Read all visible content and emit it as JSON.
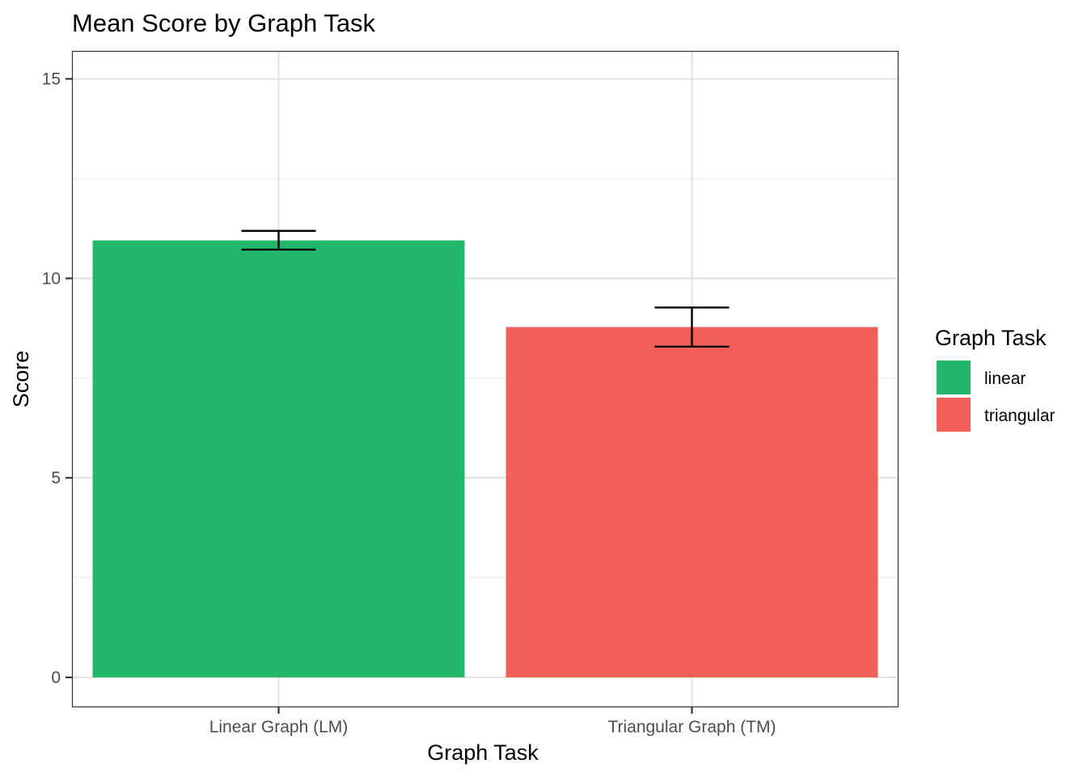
{
  "chart_data": {
    "type": "bar",
    "title": "Mean Score by Graph Task",
    "xlabel": "Graph Task",
    "ylabel": "Score",
    "categories": [
      "Linear Graph (LM)",
      "Triangular Graph (TM)"
    ],
    "values": [
      10.95,
      8.78
    ],
    "error_bars": [
      {
        "low": 10.72,
        "high": 11.19
      },
      {
        "low": 8.29,
        "high": 9.27
      }
    ],
    "ylim": [
      -0.75,
      15.7
    ],
    "yticks": [
      0,
      5,
      10,
      15
    ],
    "grid": true,
    "legend": {
      "title": "Graph Task",
      "position": "right",
      "entries": [
        {
          "label": "linear",
          "color": "#21B86B"
        },
        {
          "label": "triangular",
          "color": "#F25F5A"
        }
      ]
    },
    "colors": [
      "#21B86B",
      "#F25F5A"
    ]
  }
}
